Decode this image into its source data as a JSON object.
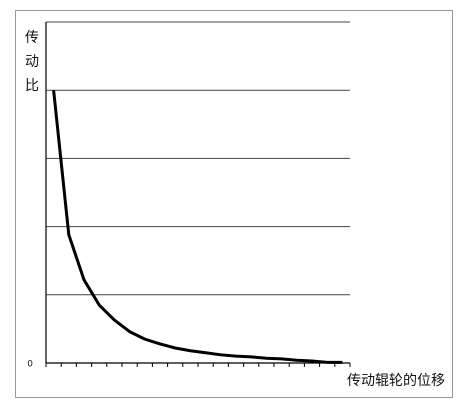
{
  "chart_data": {
    "type": "line",
    "y_label": [
      "传",
      "动",
      "比"
    ],
    "x_label": "传动辊轮的位移",
    "xlim": [
      0,
      20
    ],
    "x_tick_marks": [
      0,
      1,
      2,
      3,
      4,
      5,
      6,
      7,
      8,
      9,
      10,
      11,
      12,
      13,
      14,
      15,
      16,
      17,
      18,
      19,
      20
    ],
    "ylim": [
      0,
      5
    ],
    "yticks": [
      0
    ],
    "y_grid": [
      1,
      2,
      3,
      4,
      5
    ],
    "series": [
      {
        "color": "#000000",
        "x": [
          0.5,
          1.5,
          2.5,
          3.5,
          4.5,
          5.5,
          6.5,
          7.5,
          8.5,
          9.5,
          10.5,
          11.5,
          12.5,
          13.5,
          14.5,
          15.5,
          16.5,
          17.5,
          18.5,
          19.5
        ],
        "values": [
          4.0,
          1.88,
          1.22,
          0.85,
          0.63,
          0.46,
          0.35,
          0.28,
          0.22,
          0.18,
          0.15,
          0.12,
          0.1,
          0.09,
          0.07,
          0.06,
          0.04,
          0.03,
          0.01,
          0.01
        ]
      }
    ]
  }
}
